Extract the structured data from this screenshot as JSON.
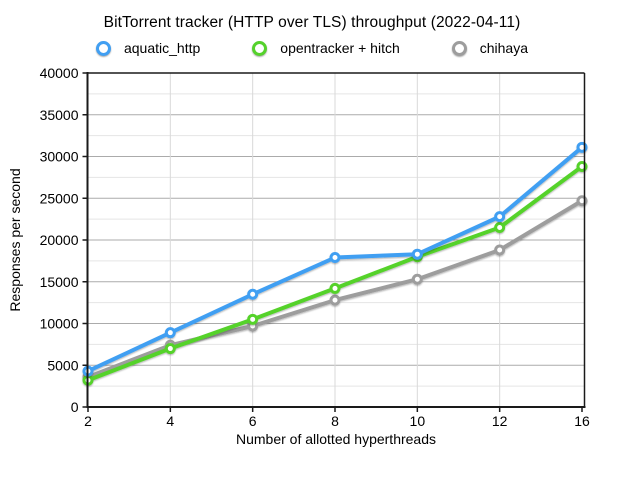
{
  "chart_data": {
    "type": "line",
    "title": "BitTorrent tracker (HTTP over TLS) throughput (2022-04-11)",
    "xlabel": "Number of allotted hyperthreads",
    "ylabel": "Responses per second",
    "categories": [
      2,
      4,
      6,
      8,
      10,
      12,
      16
    ],
    "x_tick_labels": [
      "2",
      "4",
      "6",
      "8",
      "10",
      "12",
      "16"
    ],
    "ylim": [
      0,
      40000
    ],
    "y_major_step": 5000,
    "y_minor_step": 2500,
    "grid": true,
    "legend_position": "top",
    "x_axis_note": "categorical spacing (equal intervals, including 12 to 16)",
    "series": [
      {
        "name": "aquatic_http",
        "color": "#419ff2",
        "marker": "ring-icon",
        "values": [
          4300,
          8900,
          13500,
          17900,
          18300,
          22800,
          31100
        ]
      },
      {
        "name": "opentracker + hitch",
        "color": "#55d22c",
        "marker": "ring-icon",
        "values": [
          3200,
          7000,
          10500,
          14200,
          18000,
          21500,
          28800
        ]
      },
      {
        "name": "chihaya",
        "color": "#9d9d9d",
        "marker": "ring-icon",
        "values": [
          3600,
          7400,
          9700,
          12800,
          15300,
          18800,
          24700
        ]
      }
    ],
    "colors": {
      "major_grid": "#ababab",
      "minor_grid": "#e5e5e5",
      "vertical_grid": "#d9d9d9",
      "frame": "#1a1a1a",
      "text": "#000000"
    }
  }
}
